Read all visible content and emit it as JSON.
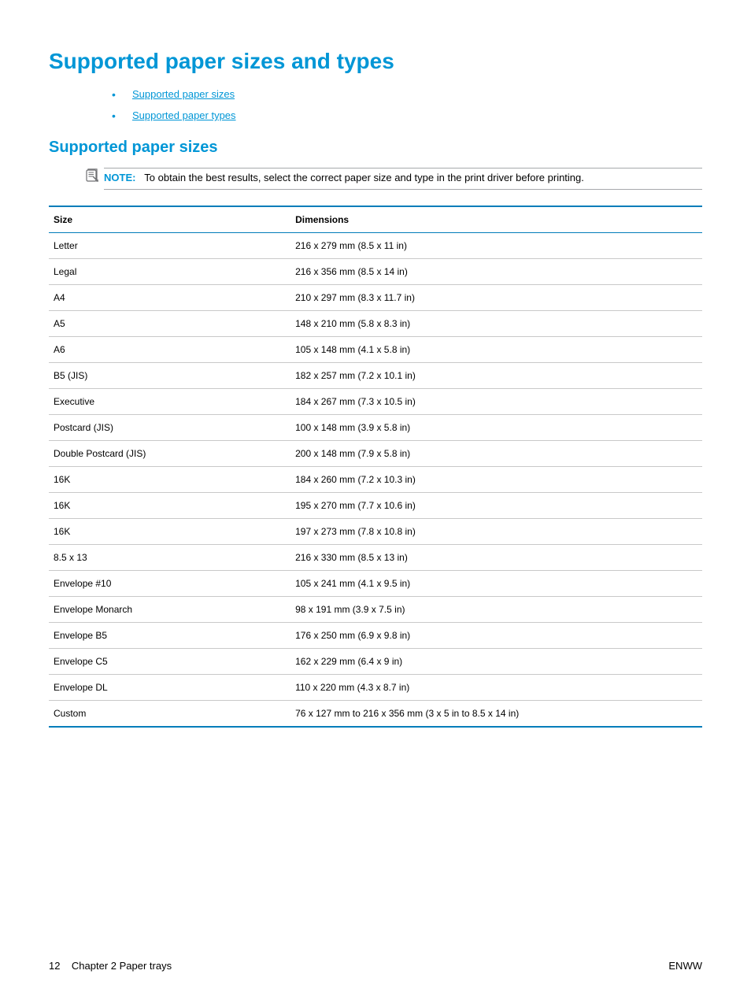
{
  "heading": "Supported paper sizes and types",
  "links": [
    {
      "label": "Supported paper sizes"
    },
    {
      "label": "Supported paper types"
    }
  ],
  "subheading": "Supported paper sizes",
  "note": {
    "label": "NOTE:",
    "text": "To obtain the best results, select the correct paper size and type in the print driver before printing."
  },
  "table": {
    "columns": [
      "Size",
      "Dimensions"
    ],
    "rows": [
      [
        "Letter",
        "216 x 279 mm (8.5 x 11 in)"
      ],
      [
        "Legal",
        "216 x 356 mm (8.5 x 14 in)"
      ],
      [
        "A4",
        "210 x 297 mm (8.3 x 11.7 in)"
      ],
      [
        "A5",
        "148 x 210 mm (5.8 x 8.3 in)"
      ],
      [
        "A6",
        "105 x 148 mm (4.1 x 5.8 in)"
      ],
      [
        "B5 (JIS)",
        "182 x 257 mm (7.2 x 10.1 in)"
      ],
      [
        "Executive",
        "184 x 267 mm (7.3 x 10.5 in)"
      ],
      [
        "Postcard (JIS)",
        "100 x 148 mm (3.9 x 5.8 in)"
      ],
      [
        "Double Postcard (JIS)",
        "200 x 148 mm (7.9 x 5.8 in)"
      ],
      [
        "16K",
        "184 x 260 mm (7.2 x 10.3 in)"
      ],
      [
        "16K",
        "195 x 270 mm (7.7 x 10.6 in)"
      ],
      [
        "16K",
        "197 x 273 mm (7.8 x 10.8 in)"
      ],
      [
        "8.5 x 13",
        "216 x 330 mm (8.5 x 13 in)"
      ],
      [
        "Envelope #10",
        "105 x 241 mm (4.1 x 9.5 in)"
      ],
      [
        "Envelope Monarch",
        "98 x 191 mm (3.9 x 7.5 in)"
      ],
      [
        "Envelope B5",
        "176 x 250 mm (6.9 x 9.8 in)"
      ],
      [
        "Envelope C5",
        "162 x 229 mm (6.4 x 9 in)"
      ],
      [
        "Envelope DL",
        "110 x 220 mm (4.3 x 8.7 in)"
      ],
      [
        "Custom",
        "76 x 127 mm to 216 x 356 mm (3 x 5 in to 8.5 x 14 in)"
      ]
    ]
  },
  "footer": {
    "left_page": "12",
    "left_text": "Chapter 2   Paper trays",
    "right": "ENWW"
  },
  "colors": {
    "brand": "#0096d6",
    "table_border": "#007dba",
    "row_border": "#c9c9c9",
    "note_border": "#a7a9ac"
  }
}
